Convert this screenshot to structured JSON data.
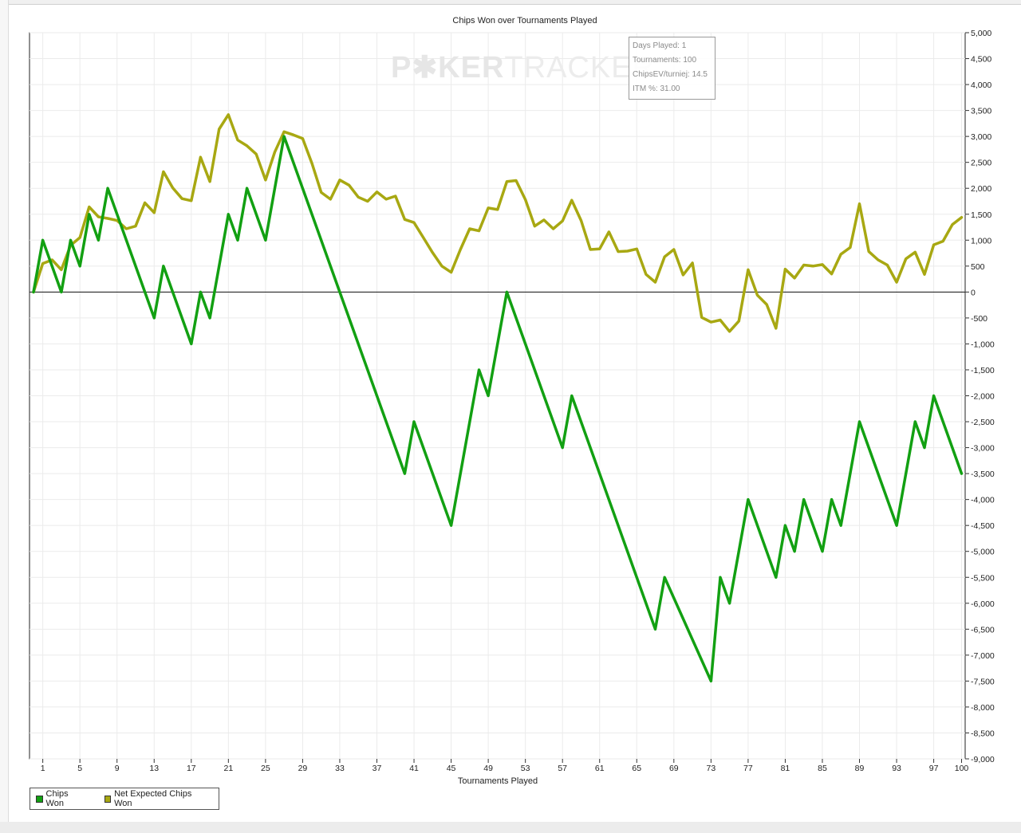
{
  "chart_data": {
    "type": "line",
    "title": "Chips Won over Tournaments Played",
    "xlabel": "Tournaments Played",
    "ylabel": "",
    "xlim": [
      0,
      100
    ],
    "ylim": [
      -9000,
      5000
    ],
    "x_ticks": [
      1,
      5,
      9,
      13,
      17,
      21,
      25,
      29,
      33,
      37,
      41,
      45,
      49,
      53,
      57,
      61,
      65,
      69,
      73,
      77,
      81,
      85,
      89,
      93,
      97,
      100
    ],
    "y_ticks": [
      5000,
      4500,
      4000,
      3500,
      3000,
      2500,
      2000,
      1500,
      1000,
      500,
      0,
      -500,
      -1000,
      -1500,
      -2000,
      -2500,
      -3000,
      -3500,
      -4000,
      -4500,
      -5000,
      -5500,
      -6000,
      -6500,
      -7000,
      -7500,
      -8000,
      -8500,
      -9000
    ],
    "y_tick_labels": [
      "5,000",
      "4,500",
      "4,000",
      "3,500",
      "3,000",
      "2,500",
      "2,000",
      "1,500",
      "1,000",
      "500",
      "0",
      "-500",
      "-1,000",
      "-1,500",
      "-2,000",
      "-2,500",
      "-3,000",
      "-3,500",
      "-4,000",
      "-4,500",
      "-5,000",
      "-5,500",
      "-6,000",
      "-6,500",
      "-7,000",
      "-7,500",
      "-8,000",
      "-8,500",
      "-9,000"
    ],
    "grid": true,
    "legend_position": "bottom-left",
    "series": [
      {
        "name": "Chips Won",
        "color": "#12a012",
        "x": [
          0,
          1,
          3,
          4,
          5,
          6,
          7,
          8,
          13,
          14,
          17,
          18,
          19,
          21,
          22,
          23,
          25,
          27,
          40,
          41,
          45,
          48,
          49,
          51,
          57,
          58,
          67,
          68,
          73,
          74,
          75,
          77,
          80,
          81,
          82,
          83,
          85,
          86,
          87,
          89,
          93,
          95,
          96,
          97,
          100
        ],
        "values": [
          0,
          1000,
          0,
          1000,
          500,
          1500,
          1000,
          2000,
          -500,
          500,
          -1000,
          0,
          -500,
          1500,
          1000,
          2000,
          1000,
          3000,
          -3500,
          -2500,
          -4500,
          -1500,
          -2000,
          0,
          -3000,
          -2000,
          -6500,
          -5500,
          -7500,
          -5500,
          -6000,
          -4000,
          -5500,
          -4500,
          -5000,
          -4000,
          -5000,
          -4000,
          -4500,
          -2500,
          -4500,
          -2500,
          -3000,
          -2000,
          -3500
        ]
      },
      {
        "name": "Net Expected Chips Won",
        "color": "#a8a812",
        "x": [
          0,
          1,
          2,
          3,
          4,
          5,
          6,
          7,
          8,
          9,
          10,
          11,
          12,
          13,
          14,
          15,
          16,
          17,
          18,
          19,
          20,
          21,
          22,
          23,
          24,
          25,
          26,
          27,
          28,
          29,
          30,
          31,
          32,
          33,
          34,
          35,
          36,
          37,
          38,
          39,
          40,
          41,
          42,
          43,
          44,
          45,
          46,
          47,
          48,
          49,
          50,
          51,
          52,
          53,
          54,
          55,
          56,
          57,
          58,
          59,
          60,
          61,
          62,
          63,
          64,
          65,
          66,
          67,
          68,
          69,
          70,
          71,
          72,
          73,
          74,
          75,
          76,
          77,
          78,
          79,
          80,
          81,
          82,
          83,
          84,
          85,
          86,
          87,
          88,
          89,
          90,
          91,
          92,
          93,
          94,
          95,
          96,
          97,
          98,
          99,
          100
        ],
        "values": [
          0,
          550,
          620,
          430,
          900,
          1050,
          1640,
          1450,
          1420,
          1380,
          1220,
          1270,
          1720,
          1530,
          2320,
          2010,
          1800,
          1760,
          2600,
          2130,
          3140,
          3420,
          2930,
          2820,
          2660,
          2160,
          2700,
          3090,
          3030,
          2960,
          2480,
          1920,
          1790,
          2160,
          2060,
          1830,
          1750,
          1930,
          1790,
          1850,
          1400,
          1340,
          1050,
          760,
          500,
          380,
          820,
          1220,
          1180,
          1620,
          1590,
          2130,
          2150,
          1780,
          1270,
          1390,
          1220,
          1370,
          1770,
          1380,
          820,
          830,
          1160,
          780,
          790,
          830,
          340,
          190,
          680,
          820,
          330,
          560,
          -490,
          -580,
          -540,
          -760,
          -560,
          430,
          -60,
          -240,
          -700,
          440,
          270,
          520,
          500,
          530,
          350,
          730,
          860,
          1700,
          780,
          620,
          520,
          190,
          640,
          770,
          340,
          910,
          980,
          1300,
          1440
        ]
      }
    ]
  },
  "tooltip": {
    "lines": [
      "Days Played: 1",
      "Tournaments: 100",
      "ChipsEV/turniej: 14.5",
      "ITM %: 31.00"
    ]
  },
  "watermark": {
    "bold": "P✱KER",
    "thin": "TRACKER"
  }
}
